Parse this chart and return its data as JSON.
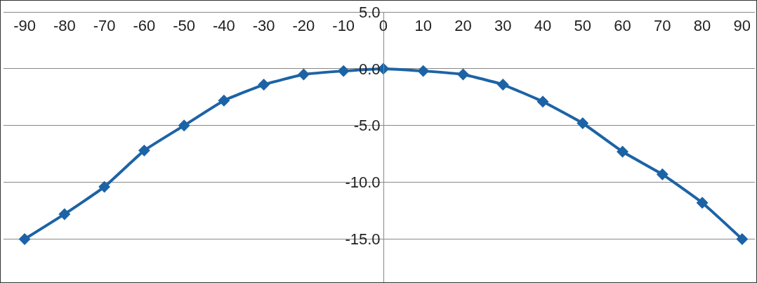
{
  "chart_data": {
    "type": "line",
    "x": [
      -90,
      -80,
      -70,
      -60,
      -50,
      -40,
      -30,
      -20,
      -10,
      0,
      10,
      20,
      30,
      40,
      50,
      60,
      70,
      80,
      90
    ],
    "series": [
      {
        "color": "#1c63a6",
        "values": [
          -15.0,
          -12.8,
          -10.4,
          -7.2,
          -5.0,
          -2.8,
          -1.4,
          -0.5,
          -0.2,
          0,
          -0.2,
          -0.5,
          -1.4,
          -2.9,
          -4.8,
          -7.3,
          -9.3,
          -11.8,
          -15.0
        ]
      }
    ],
    "xlim": [
      -95.3,
      93.2
    ],
    "xticks": [
      -90,
      -80,
      -70,
      -60,
      -50,
      -40,
      -30,
      -20,
      -10,
      0,
      10,
      20,
      30,
      40,
      50,
      60,
      70,
      80,
      90
    ],
    "ylim": [
      -18.8,
      5
    ],
    "yticks": [
      {
        "value": 5,
        "label": "5.0"
      },
      {
        "value": 0,
        "label": "0.0"
      },
      {
        "value": -5,
        "label": "-5.0"
      },
      {
        "value": -10,
        "label": "-10.0"
      },
      {
        "value": -15,
        "label": "-15.0"
      }
    ],
    "grid": "y",
    "legend": false,
    "marker": "diamond",
    "line_style": "solid"
  }
}
